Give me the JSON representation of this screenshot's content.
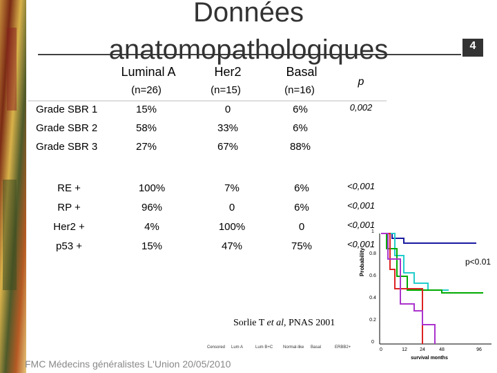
{
  "header": {
    "title_line1": "Données",
    "title_line2": "anatomopathologiques",
    "slide_number": "4"
  },
  "table": {
    "columns": [
      "Luminal A",
      "Her2",
      "Basal"
    ],
    "counts": [
      "(n=26)",
      "(n=15)",
      "(n=16)"
    ],
    "p_header": "p",
    "grade_rows": [
      {
        "label": "Grade SBR 1",
        "values": [
          "15%",
          "0",
          "6%"
        ],
        "p": "0,002"
      },
      {
        "label": "Grade SBR 2",
        "values": [
          "58%",
          "33%",
          "6%"
        ]
      },
      {
        "label": "Grade SBR 3",
        "values": [
          "27%",
          "67%",
          "88%"
        ]
      }
    ],
    "marker_rows": [
      {
        "label": "RE +",
        "values": [
          "100%",
          "7%",
          "6%"
        ],
        "p": "<0,001"
      },
      {
        "label": "RP +",
        "values": [
          "96%",
          "0",
          "6%"
        ],
        "p": "<0,001"
      },
      {
        "label": "Her2 +",
        "values": [
          "4%",
          "100%",
          "0"
        ],
        "p": "<0,001"
      },
      {
        "label": "p53 +",
        "values": [
          "15%",
          "47%",
          "75%"
        ],
        "p": "<0,001"
      }
    ]
  },
  "figure": {
    "y_label": "Probability",
    "p_value": "p<0.01",
    "x_label": "survival months",
    "yticks": [
      "1",
      "0.8",
      "0.6",
      "0.4",
      "0.2",
      "0"
    ],
    "xticks": [
      "0",
      "12",
      "24",
      "48",
      "96"
    ],
    "legend": [
      "Censored",
      "Lum A",
      "Lum B+C",
      "Normal-like",
      "Basal",
      "ERBB2+"
    ]
  },
  "citation": {
    "author": "Sorlie T ",
    "etal": "et al",
    "rest": ", PNAS  2001"
  },
  "footer": "FMC Médecins généralistes L'Union 20/05/2010"
}
